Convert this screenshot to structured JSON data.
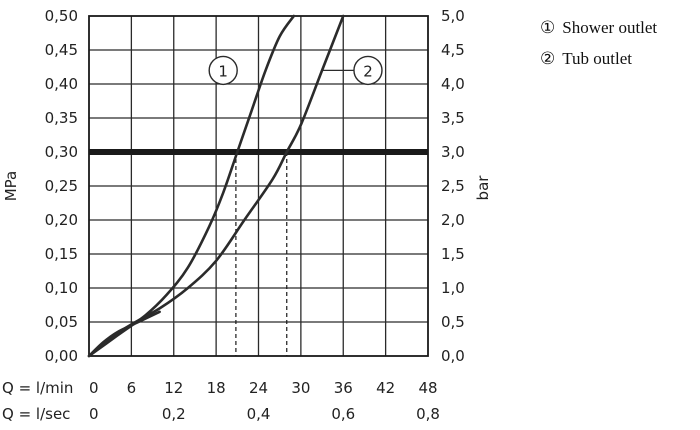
{
  "legend": {
    "items": [
      {
        "marker": "①",
        "label": "Shower outlet"
      },
      {
        "marker": "②",
        "label": "Tub outlet"
      }
    ]
  },
  "chart_data": {
    "type": "line",
    "title": "",
    "ylabel_left": "MPa",
    "ylabel_right": "bar",
    "x_rows": [
      {
        "label": "Q = l/min",
        "ticks": [
          "0",
          "6",
          "12",
          "18",
          "24",
          "30",
          "36",
          "42",
          "48"
        ]
      },
      {
        "label": "Q = l/sec",
        "ticks": [
          "0",
          "0,2",
          "0,4",
          "0,6",
          "0,8"
        ]
      }
    ],
    "xlim": [
      0,
      48
    ],
    "ylim": [
      0,
      0.5
    ],
    "y_ticks_left": [
      "0,00",
      "0,05",
      "0,10",
      "0,15",
      "0,20",
      "0,25",
      "0,30",
      "0,35",
      "0,40",
      "0,45",
      "0,50"
    ],
    "y_ticks_right": [
      "0,0",
      "0,5",
      "1,0",
      "1,5",
      "2,0",
      "2,5",
      "3,0",
      "3,5",
      "4,0",
      "4,5",
      "5,0"
    ],
    "grid": true,
    "reference_line": {
      "y": 0.3
    },
    "series": [
      {
        "label": "1",
        "x": [
          0,
          4,
          8,
          11,
          14,
          17,
          19,
          21,
          23,
          25,
          27,
          29
        ],
        "y": [
          0,
          0.03,
          0.06,
          0.09,
          0.13,
          0.19,
          0.24,
          0.3,
          0.36,
          0.42,
          0.47,
          0.5
        ],
        "drop_x": 20.8
      },
      {
        "label": "2",
        "x": [
          0,
          5,
          10,
          14,
          18,
          22,
          26,
          28,
          30,
          33,
          36
        ],
        "y": [
          0,
          0.04,
          0.07,
          0.1,
          0.14,
          0.2,
          0.26,
          0.3,
          0.34,
          0.42,
          0.5
        ],
        "drop_x": 28
      },
      {
        "label": "",
        "x": [
          0,
          2,
          4,
          7,
          10
        ],
        "y": [
          0,
          0.02,
          0.035,
          0.05,
          0.065
        ]
      }
    ],
    "callouts": [
      {
        "text": "1",
        "series": 0,
        "point": [
          21,
          0.42
        ],
        "circle": [
          19,
          0.42
        ]
      },
      {
        "text": "2",
        "series": 1,
        "point": [
          33,
          0.42
        ],
        "circle": [
          39.5,
          0.42
        ]
      }
    ]
  }
}
